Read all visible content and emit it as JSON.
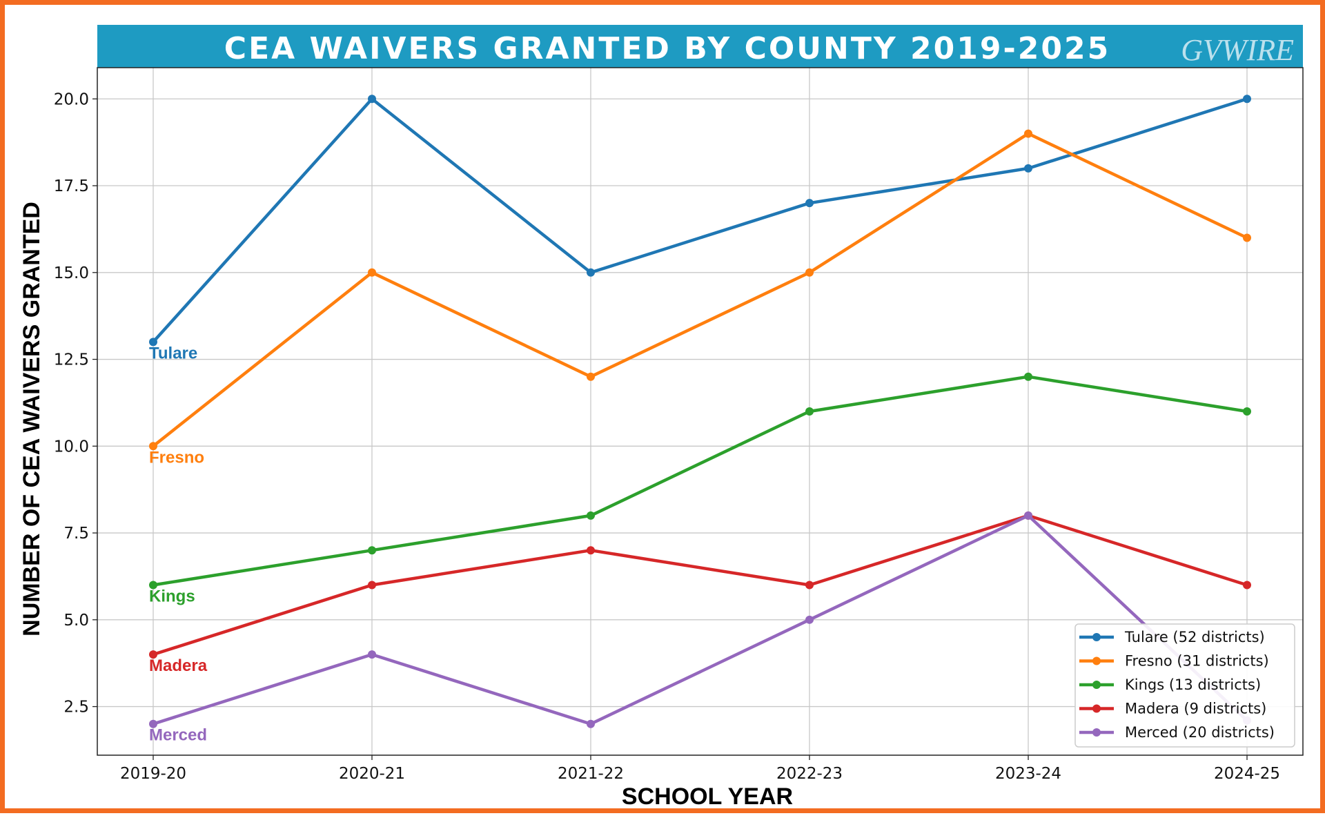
{
  "title": "CEA WAIVERS GRANTED BY COUNTY 2019-2025",
  "logo": "GVWIRE",
  "colors": {
    "frame": "#f36c21",
    "title_bar": "#1e9bc2",
    "grid": "#c8c8c8"
  },
  "chart_data": {
    "type": "line",
    "title": "CEA WAIVERS GRANTED BY COUNTY 2019-2025",
    "xlabel": "SCHOOL YEAR",
    "ylabel": "NUMBER OF CEA WAIVERS GRANTED",
    "categories": [
      "2019-20",
      "2020-21",
      "2021-22",
      "2022-23",
      "2023-24",
      "2024-25"
    ],
    "ylim": [
      1.1,
      20.9
    ],
    "yticks": [
      2.5,
      5.0,
      7.5,
      10.0,
      12.5,
      15.0,
      17.5,
      20.0
    ],
    "ytick_labels": [
      "2.5",
      "5.0",
      "7.5",
      "10.0",
      "12.5",
      "15.0",
      "17.5",
      "20.0"
    ],
    "grid": true,
    "legend_position": "bottom-right",
    "series": [
      {
        "name": "Tulare",
        "legend": "Tulare (52 districts)",
        "color": "#1f77b4",
        "values": [
          13,
          20,
          15,
          17,
          18,
          20
        ]
      },
      {
        "name": "Fresno",
        "legend": "Fresno (31 districts)",
        "color": "#ff7f0e",
        "values": [
          10,
          15,
          12,
          15,
          19,
          16
        ]
      },
      {
        "name": "Kings",
        "legend": "Kings (13 districts)",
        "color": "#2ca02c",
        "values": [
          6,
          7,
          8,
          11,
          12,
          11
        ]
      },
      {
        "name": "Madera",
        "legend": "Madera (9 districts)",
        "color": "#d62728",
        "values": [
          4,
          6,
          7,
          6,
          8,
          6
        ]
      },
      {
        "name": "Merced",
        "legend": "Merced (20 districts)",
        "color": "#9467bd",
        "values": [
          2,
          4,
          2,
          5,
          8,
          2.1
        ]
      }
    ]
  }
}
